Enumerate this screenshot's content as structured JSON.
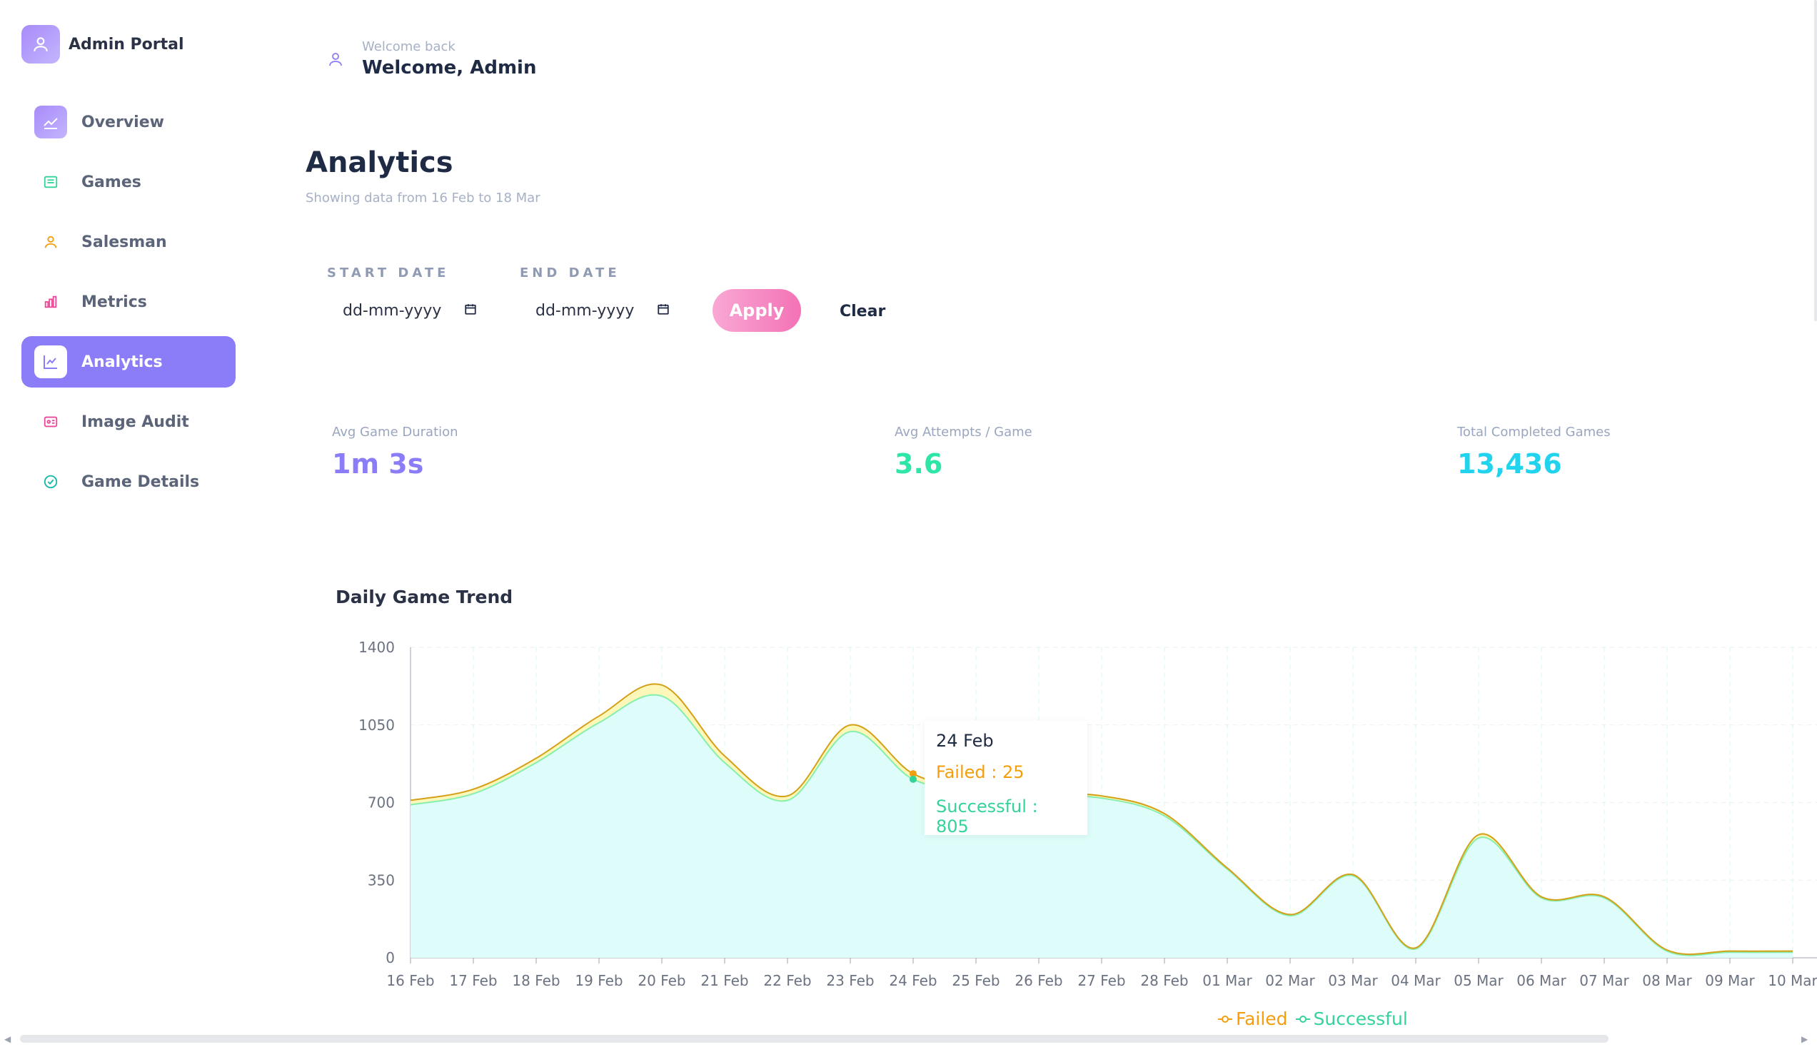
{
  "app": {
    "title": "Admin Portal"
  },
  "sidebar": {
    "items": [
      {
        "label": "Overview",
        "icon": "trend-icon",
        "color": "#ffffff"
      },
      {
        "label": "Games",
        "icon": "list-icon",
        "color": "#34d399"
      },
      {
        "label": "Salesman",
        "icon": "user-icon",
        "color": "#f59e0b"
      },
      {
        "label": "Metrics",
        "icon": "bar-chart-icon",
        "color": "#ec4899"
      },
      {
        "label": "Analytics",
        "icon": "line-chart-icon",
        "color": "#8b7cf7",
        "active": true
      },
      {
        "label": "Image Audit",
        "icon": "image-icon",
        "color": "#ec4899"
      },
      {
        "label": "Game Details",
        "icon": "check-circle-icon",
        "color": "#14b8a6"
      }
    ]
  },
  "header": {
    "welcome_small": "Welcome back",
    "welcome_big": "Welcome, Admin"
  },
  "page": {
    "title": "Analytics",
    "subtitle": "Showing data from 16 Feb to 18 Mar"
  },
  "filters": {
    "start_label": "START DATE",
    "end_label": "END DATE",
    "start_value": "dd-mm-yyyy",
    "end_value": "dd-mm-yyyy",
    "apply_label": "Apply",
    "clear_label": "Clear"
  },
  "kpis": [
    {
      "label": "Avg Game Duration",
      "value": "1m 3s",
      "color": "#8b7cf7"
    },
    {
      "label": "Avg Attempts / Game",
      "value": "3.6",
      "color": "#2ee6a6"
    },
    {
      "label": "Total Completed Games",
      "value": "13,436",
      "color": "#22d3ee"
    }
  ],
  "chart_data": {
    "type": "area",
    "title": "Daily Game Trend",
    "categories": [
      "16 Feb",
      "17 Feb",
      "18 Feb",
      "19 Feb",
      "20 Feb",
      "21 Feb",
      "22 Feb",
      "23 Feb",
      "24 Feb",
      "25 Feb",
      "26 Feb",
      "27 Feb",
      "28 Feb",
      "01 Mar",
      "02 Mar",
      "03 Mar",
      "04 Mar",
      "05 Mar",
      "06 Mar",
      "07 Mar",
      "08 Mar",
      "09 Mar",
      "10 Mar"
    ],
    "series": [
      {
        "name": "Successful",
        "values": [
          690,
          740,
          880,
          1060,
          1180,
          880,
          710,
          1020,
          805,
          750,
          730,
          720,
          640,
          400,
          190,
          370,
          40,
          540,
          270,
          270,
          30,
          25,
          25
        ],
        "color": "#34d399"
      },
      {
        "name": "Failed",
        "values": [
          20,
          20,
          20,
          30,
          50,
          30,
          20,
          30,
          25,
          10,
          10,
          10,
          10,
          5,
          5,
          5,
          5,
          15,
          5,
          5,
          5,
          5,
          5
        ],
        "color": "#f59e0b"
      }
    ],
    "yticks": [
      0,
      350,
      700,
      1050,
      1400
    ],
    "ylim": [
      0,
      1400
    ],
    "stacked": true,
    "grid": true,
    "legend": "bottom-center",
    "tooltip": {
      "date": "24 Feb",
      "failed": "Failed : 25",
      "successful": "Successful : 805"
    }
  }
}
